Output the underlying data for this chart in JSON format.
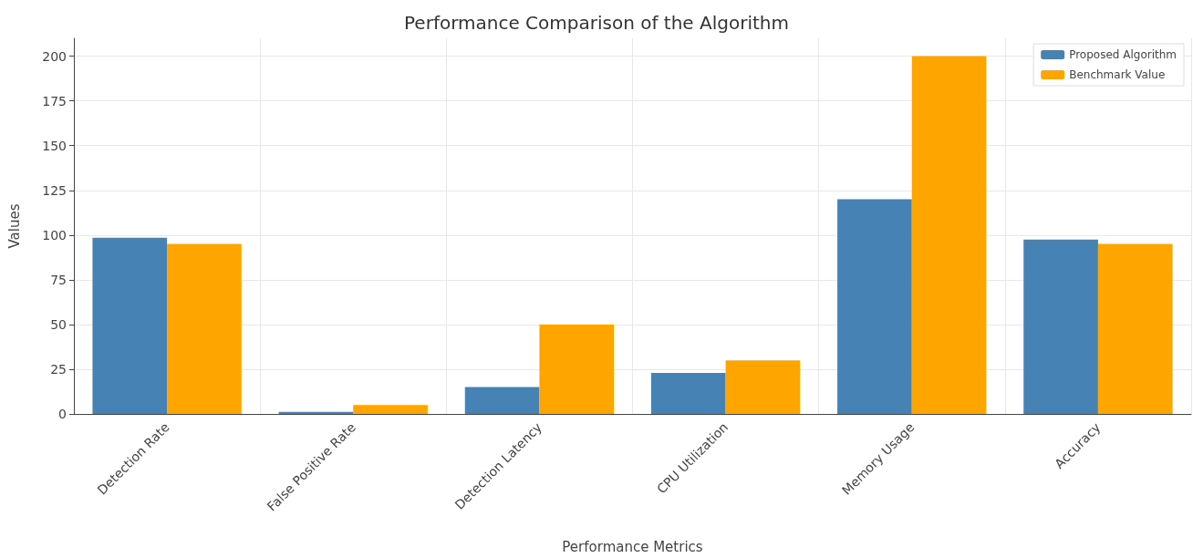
{
  "chart_data": {
    "type": "bar",
    "title": "Performance Comparison of the Algorithm",
    "xlabel": "Performance Metrics",
    "ylabel": "Values",
    "categories": [
      "Detection Rate",
      "False Positive Rate",
      "Detection Latency",
      "CPU Utilization",
      "Memory Usage",
      "Accuracy"
    ],
    "series": [
      {
        "name": "Proposed Algorithm",
        "color": "#4682b4",
        "values": [
          98.5,
          1.2,
          15,
          23,
          120,
          97.5
        ]
      },
      {
        "name": "Benchmark Value",
        "color": "#ffa500",
        "values": [
          95,
          5,
          50,
          30,
          200,
          95
        ]
      }
    ],
    "ylim": [
      0,
      210
    ],
    "yticks": [
      0,
      25,
      50,
      75,
      100,
      125,
      150,
      175,
      200
    ],
    "grid": true,
    "legend": "top right"
  }
}
